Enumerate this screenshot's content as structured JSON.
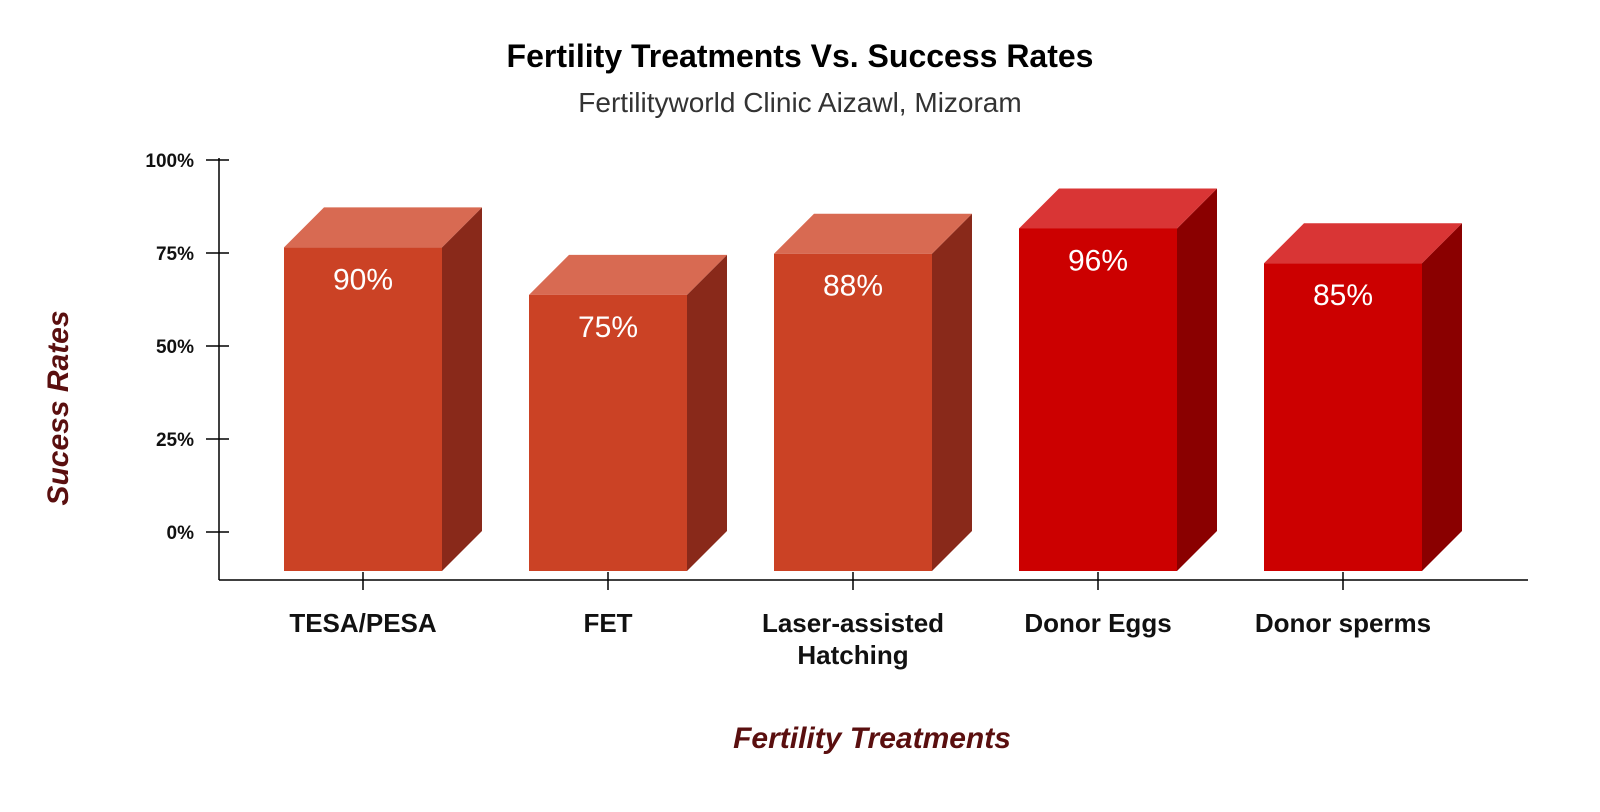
{
  "chart_data": {
    "type": "bar",
    "title": "Fertility Treatments Vs. Success Rates",
    "subtitle": "Fertilityworld Clinic Aizawl, Mizoram",
    "xlabel": "Fertility Treatments",
    "ylabel": "Sucess Rates",
    "categories": [
      "TESA/PESA",
      "FET",
      "Laser-assisted Hatching",
      "Donor Eggs",
      "Donor sperms"
    ],
    "category_lines": [
      [
        "TESA/PESA"
      ],
      [
        "FET"
      ],
      [
        "Laser-assisted",
        "Hatching"
      ],
      [
        "Donor Eggs"
      ],
      [
        "Donor sperms"
      ]
    ],
    "values": [
      90,
      75,
      88,
      96,
      85
    ],
    "data_labels": [
      "90%",
      "75%",
      "88%",
      "96%",
      "85%"
    ],
    "y_ticks": [
      0,
      25,
      50,
      75,
      100
    ],
    "y_tick_labels": [
      "0%",
      "25%",
      "50%",
      "75%",
      "100%"
    ],
    "ylim_visible": [
      -13,
      100
    ],
    "grid": false,
    "legend": "none",
    "colors": {
      "orange_front": "#CB4225",
      "orange_top": "#D86A52",
      "orange_side": "#89291A",
      "red_front": "#CC0000",
      "red_top": "#D93535",
      "red_side": "#8A0000",
      "axis_title": "#5A0F0F",
      "axis_line": "#000000"
    },
    "bar_color_keys": [
      "orange",
      "orange",
      "orange",
      "red",
      "red"
    ]
  }
}
